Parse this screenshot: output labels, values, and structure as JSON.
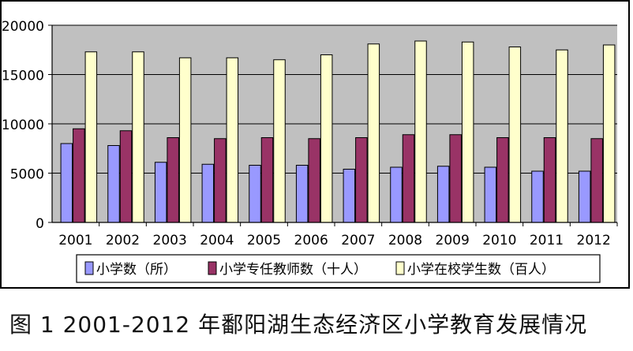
{
  "chart_data": {
    "type": "bar",
    "categories": [
      "2001",
      "2002",
      "2003",
      "2004",
      "2005",
      "2006",
      "2007",
      "2008",
      "2009",
      "2010",
      "2011",
      "2012"
    ],
    "series": [
      {
        "name": "小学数（所）",
        "color": "#9999ff",
        "values": [
          8000,
          7800,
          6100,
          5900,
          5800,
          5800,
          5400,
          5600,
          5700,
          5600,
          5200,
          5200
        ]
      },
      {
        "name": "小学专任教师数（十人）",
        "color": "#993366",
        "values": [
          9500,
          9300,
          8600,
          8500,
          8600,
          8500,
          8600,
          8900,
          8900,
          8600,
          8600,
          8500
        ]
      },
      {
        "name": "小学在校学生数（百人）",
        "color": "#ffffcc",
        "values": [
          17300,
          17300,
          16700,
          16700,
          16500,
          17000,
          18100,
          18400,
          18300,
          17800,
          17500,
          18000
        ]
      }
    ],
    "ylim": [
      0,
      20000
    ],
    "yticks": [
      "0",
      "5000",
      "10000",
      "15000",
      "20000"
    ],
    "plot_background": "#c0c0c0",
    "grid": true,
    "legend_position": "bottom"
  },
  "caption": "图 1  2001-2012 年鄱阳湖生态经济区小学教育发展情况"
}
